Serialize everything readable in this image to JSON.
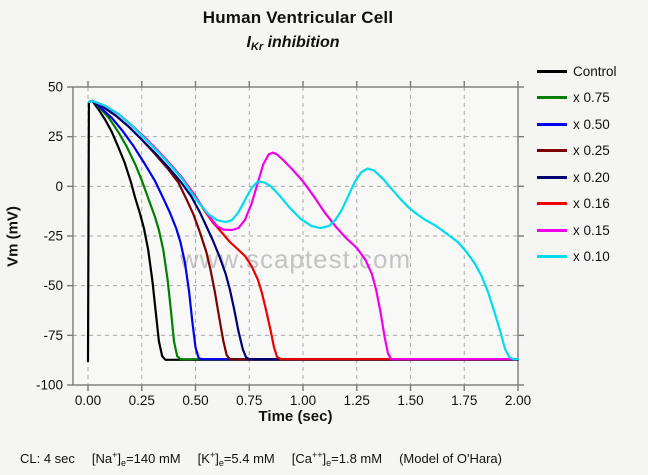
{
  "title": "Human Ventricular Cell",
  "subtitle": {
    "current": "I",
    "sub": "Kr",
    "rest": " inhibition"
  },
  "watermark": "www.scaptest.com",
  "footer": {
    "cl": "CL: 4 sec",
    "na": {
      "pre": "[Na",
      "sup": "+",
      "bracket": "]",
      "sub": "e",
      "val": "=140 mM"
    },
    "k": {
      "pre": "[K",
      "sup": "+",
      "bracket": "]",
      "sub": "e",
      "val": "=5.4 mM"
    },
    "ca": {
      "pre": "[Ca",
      "sup": "++",
      "bracket": "]",
      "sub": "e",
      "val": "=1.8 mM"
    },
    "model": "(Model of O'Hara)"
  },
  "chart_data": {
    "type": "line",
    "title": "Human Ventricular Cell",
    "subtitle": "IKr inhibition",
    "xlabel": "Time (sec)",
    "ylabel": "Vm (mV)",
    "xlim": [
      -0.07,
      2.0
    ],
    "ylim": [
      -100,
      50
    ],
    "xticks": [
      0,
      0.25,
      0.5,
      0.75,
      1.0,
      1.25,
      1.5,
      1.75,
      2.0
    ],
    "xtick_labels": [
      "0.00",
      "0.25",
      "0.50",
      "0.75",
      "1.00",
      "1.25",
      "1.50",
      "1.75",
      "2.00"
    ],
    "yticks": [
      50,
      25,
      0,
      -25,
      -50,
      -75,
      -100
    ],
    "ytick_labels": [
      "50",
      "25",
      "0",
      "-25",
      "-50",
      "-75",
      "-100"
    ],
    "grid": true,
    "grid_style": "dashed",
    "legend_position": "right",
    "frame_color": "#7a7a7a",
    "grid_color": "#a9a9a9",
    "series": [
      {
        "name": "Control",
        "color": "#000000",
        "points": [
          [
            0,
            -88
          ],
          [
            0.004,
            42.5
          ],
          [
            0.02,
            43
          ],
          [
            0.05,
            38.5
          ],
          [
            0.08,
            33.5
          ],
          [
            0.11,
            27.5
          ],
          [
            0.14,
            20
          ],
          [
            0.17,
            12
          ],
          [
            0.2,
            2
          ],
          [
            0.22,
            -6
          ],
          [
            0.24,
            -13
          ],
          [
            0.26,
            -21
          ],
          [
            0.28,
            -32
          ],
          [
            0.3,
            -48
          ],
          [
            0.315,
            -63
          ],
          [
            0.33,
            -78
          ],
          [
            0.345,
            -85.5
          ],
          [
            0.36,
            -87.3
          ],
          [
            2.0,
            -87.3
          ]
        ]
      },
      {
        "name": "x 0.75",
        "color": "#008000",
        "points": [
          [
            0.005,
            42.5
          ],
          [
            0.02,
            43
          ],
          [
            0.06,
            39
          ],
          [
            0.1,
            34
          ],
          [
            0.14,
            27.5
          ],
          [
            0.18,
            20
          ],
          [
            0.22,
            11
          ],
          [
            0.25,
            3
          ],
          [
            0.28,
            -6
          ],
          [
            0.31,
            -15
          ],
          [
            0.33,
            -22
          ],
          [
            0.35,
            -32
          ],
          [
            0.37,
            -47
          ],
          [
            0.385,
            -62
          ],
          [
            0.4,
            -78
          ],
          [
            0.415,
            -85.5
          ],
          [
            0.43,
            -87
          ],
          [
            2.0,
            -87
          ]
        ]
      },
      {
        "name": "x 0.50",
        "color": "#0000ee",
        "points": [
          [
            0.005,
            42.5
          ],
          [
            0.02,
            43
          ],
          [
            0.06,
            39.5
          ],
          [
            0.11,
            34.5
          ],
          [
            0.16,
            28
          ],
          [
            0.21,
            20.5
          ],
          [
            0.26,
            12
          ],
          [
            0.31,
            3
          ],
          [
            0.35,
            -6
          ],
          [
            0.38,
            -13
          ],
          [
            0.41,
            -21
          ],
          [
            0.43,
            -28
          ],
          [
            0.45,
            -38
          ],
          [
            0.47,
            -53
          ],
          [
            0.485,
            -68
          ],
          [
            0.5,
            -81
          ],
          [
            0.515,
            -86.5
          ],
          [
            0.53,
            -87
          ],
          [
            2.0,
            -87
          ]
        ]
      },
      {
        "name": "x 0.25",
        "color": "#7d0000",
        "points": [
          [
            0.005,
            42.5
          ],
          [
            0.02,
            43
          ],
          [
            0.07,
            40
          ],
          [
            0.13,
            35.5
          ],
          [
            0.19,
            30
          ],
          [
            0.25,
            23.5
          ],
          [
            0.31,
            16.5
          ],
          [
            0.37,
            9
          ],
          [
            0.42,
            2
          ],
          [
            0.46,
            -7
          ],
          [
            0.49,
            -14
          ],
          [
            0.52,
            -23
          ],
          [
            0.55,
            -33
          ],
          [
            0.57,
            -42
          ],
          [
            0.59,
            -53
          ],
          [
            0.61,
            -66
          ],
          [
            0.63,
            -78
          ],
          [
            0.645,
            -85
          ],
          [
            0.66,
            -87
          ],
          [
            2.0,
            -87
          ]
        ]
      },
      {
        "name": "x 0.20",
        "color": "#000075",
        "points": [
          [
            0.005,
            42.5
          ],
          [
            0.02,
            43
          ],
          [
            0.07,
            40
          ],
          [
            0.13,
            35.5
          ],
          [
            0.19,
            30
          ],
          [
            0.25,
            23.5
          ],
          [
            0.31,
            17
          ],
          [
            0.37,
            10
          ],
          [
            0.43,
            2.5
          ],
          [
            0.48,
            -5
          ],
          [
            0.52,
            -13
          ],
          [
            0.55,
            -20
          ],
          [
            0.58,
            -27
          ],
          [
            0.61,
            -35
          ],
          [
            0.64,
            -44
          ],
          [
            0.66,
            -52
          ],
          [
            0.68,
            -62
          ],
          [
            0.7,
            -73
          ],
          [
            0.72,
            -82
          ],
          [
            0.735,
            -86
          ],
          [
            0.75,
            -87
          ],
          [
            2.0,
            -87
          ]
        ]
      },
      {
        "name": "x 0.16",
        "color": "#ee0000",
        "points": [
          [
            0.005,
            42.5
          ],
          [
            0.02,
            43
          ],
          [
            0.08,
            40.5
          ],
          [
            0.14,
            36.5
          ],
          [
            0.2,
            31
          ],
          [
            0.26,
            25
          ],
          [
            0.32,
            18.5
          ],
          [
            0.38,
            11.5
          ],
          [
            0.44,
            4
          ],
          [
            0.5,
            -5
          ],
          [
            0.54,
            -12
          ],
          [
            0.58,
            -18
          ],
          [
            0.62,
            -23
          ],
          [
            0.66,
            -28
          ],
          [
            0.7,
            -32
          ],
          [
            0.73,
            -35
          ],
          [
            0.76,
            -40
          ],
          [
            0.79,
            -47
          ],
          [
            0.81,
            -54
          ],
          [
            0.83,
            -63
          ],
          [
            0.85,
            -73
          ],
          [
            0.865,
            -81
          ],
          [
            0.88,
            -86
          ],
          [
            0.9,
            -87
          ],
          [
            2.0,
            -87
          ]
        ]
      },
      {
        "name": "x 0.15",
        "color": "#ee00ee",
        "points": [
          [
            0.005,
            42.5
          ],
          [
            0.02,
            43
          ],
          [
            0.08,
            40.5
          ],
          [
            0.14,
            36.5
          ],
          [
            0.2,
            31
          ],
          [
            0.26,
            25
          ],
          [
            0.32,
            18.5
          ],
          [
            0.38,
            11.5
          ],
          [
            0.44,
            4
          ],
          [
            0.49,
            -4
          ],
          [
            0.53,
            -10
          ],
          [
            0.57,
            -16
          ],
          [
            0.6,
            -20
          ],
          [
            0.63,
            -21.8
          ],
          [
            0.67,
            -22
          ],
          [
            0.7,
            -21
          ],
          [
            0.73,
            -17
          ],
          [
            0.76,
            -9
          ],
          [
            0.79,
            2
          ],
          [
            0.815,
            11
          ],
          [
            0.84,
            16
          ],
          [
            0.86,
            17
          ],
          [
            0.88,
            16
          ],
          [
            0.91,
            13
          ],
          [
            0.95,
            8.5
          ],
          [
            1.0,
            2.5
          ],
          [
            1.05,
            -5
          ],
          [
            1.1,
            -13
          ],
          [
            1.15,
            -20
          ],
          [
            1.2,
            -26
          ],
          [
            1.25,
            -31
          ],
          [
            1.29,
            -37
          ],
          [
            1.32,
            -44
          ],
          [
            1.34,
            -52
          ],
          [
            1.36,
            -63
          ],
          [
            1.38,
            -76
          ],
          [
            1.395,
            -84
          ],
          [
            1.41,
            -87
          ],
          [
            2.0,
            -87
          ]
        ]
      },
      {
        "name": "x 0.10",
        "color": "#00dcee",
        "points": [
          [
            0.005,
            42.5
          ],
          [
            0.02,
            43
          ],
          [
            0.08,
            40.5
          ],
          [
            0.14,
            36.5
          ],
          [
            0.2,
            31
          ],
          [
            0.26,
            24.5
          ],
          [
            0.32,
            18
          ],
          [
            0.38,
            11
          ],
          [
            0.44,
            3.5
          ],
          [
            0.48,
            -3
          ],
          [
            0.52,
            -9
          ],
          [
            0.56,
            -14
          ],
          [
            0.6,
            -17
          ],
          [
            0.64,
            -18
          ],
          [
            0.67,
            -17
          ],
          [
            0.7,
            -13
          ],
          [
            0.73,
            -7
          ],
          [
            0.76,
            -1
          ],
          [
            0.79,
            2.5
          ],
          [
            0.82,
            2
          ],
          [
            0.85,
            0
          ],
          [
            0.89,
            -4.5
          ],
          [
            0.94,
            -11
          ],
          [
            0.99,
            -16.5
          ],
          [
            1.04,
            -20
          ],
          [
            1.08,
            -21
          ],
          [
            1.12,
            -20
          ],
          [
            1.15,
            -17
          ],
          [
            1.18,
            -12
          ],
          [
            1.21,
            -5
          ],
          [
            1.24,
            2
          ],
          [
            1.27,
            7
          ],
          [
            1.3,
            9
          ],
          [
            1.33,
            8
          ],
          [
            1.37,
            4
          ],
          [
            1.41,
            -1
          ],
          [
            1.45,
            -6
          ],
          [
            1.49,
            -10.5
          ],
          [
            1.53,
            -14
          ],
          [
            1.57,
            -17
          ],
          [
            1.62,
            -20
          ],
          [
            1.67,
            -24
          ],
          [
            1.72,
            -28
          ],
          [
            1.76,
            -33
          ],
          [
            1.8,
            -39
          ],
          [
            1.83,
            -45
          ],
          [
            1.86,
            -53
          ],
          [
            1.89,
            -63
          ],
          [
            1.92,
            -74
          ],
          [
            1.94,
            -82
          ],
          [
            1.96,
            -86
          ],
          [
            1.98,
            -87
          ],
          [
            2.0,
            -87
          ]
        ]
      }
    ]
  }
}
